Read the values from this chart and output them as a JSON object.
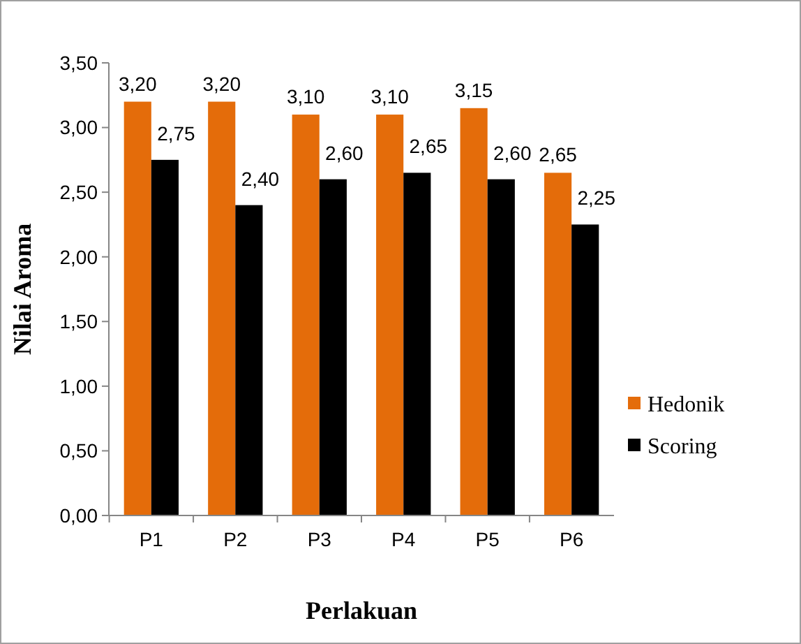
{
  "chart_data": {
    "type": "bar",
    "xlabel": "Perlakuan",
    "ylabel": "Nilai Aroma",
    "categories": [
      "P1",
      "P2",
      "P3",
      "P4",
      "P5",
      "P6"
    ],
    "series": [
      {
        "name": "Hedonik",
        "color": "#e46c0a",
        "values": [
          3.2,
          3.2,
          3.1,
          3.1,
          3.15,
          2.65
        ],
        "value_labels": [
          "3,20",
          "3,20",
          "3,10",
          "3,10",
          "3,15",
          "2,65"
        ]
      },
      {
        "name": "Scoring",
        "color": "#000000",
        "values": [
          2.75,
          2.4,
          2.6,
          2.65,
          2.6,
          2.25
        ],
        "value_labels": [
          "2,75",
          "2,40",
          "2,60",
          "2,65",
          "2,60",
          "2,25"
        ]
      }
    ],
    "ylim": [
      0,
      3.5
    ],
    "yticks": [
      {
        "value": 0,
        "label": "0,00"
      },
      {
        "value": 0.5,
        "label": "0,50"
      },
      {
        "value": 1,
        "label": "1,00"
      },
      {
        "value": 1.5,
        "label": "1,50"
      },
      {
        "value": 2,
        "label": "2,00"
      },
      {
        "value": 2.5,
        "label": "2,50"
      },
      {
        "value": 3,
        "label": "3,00"
      },
      {
        "value": 3.5,
        "label": "3,50"
      }
    ],
    "grid": false,
    "legend": "right"
  }
}
